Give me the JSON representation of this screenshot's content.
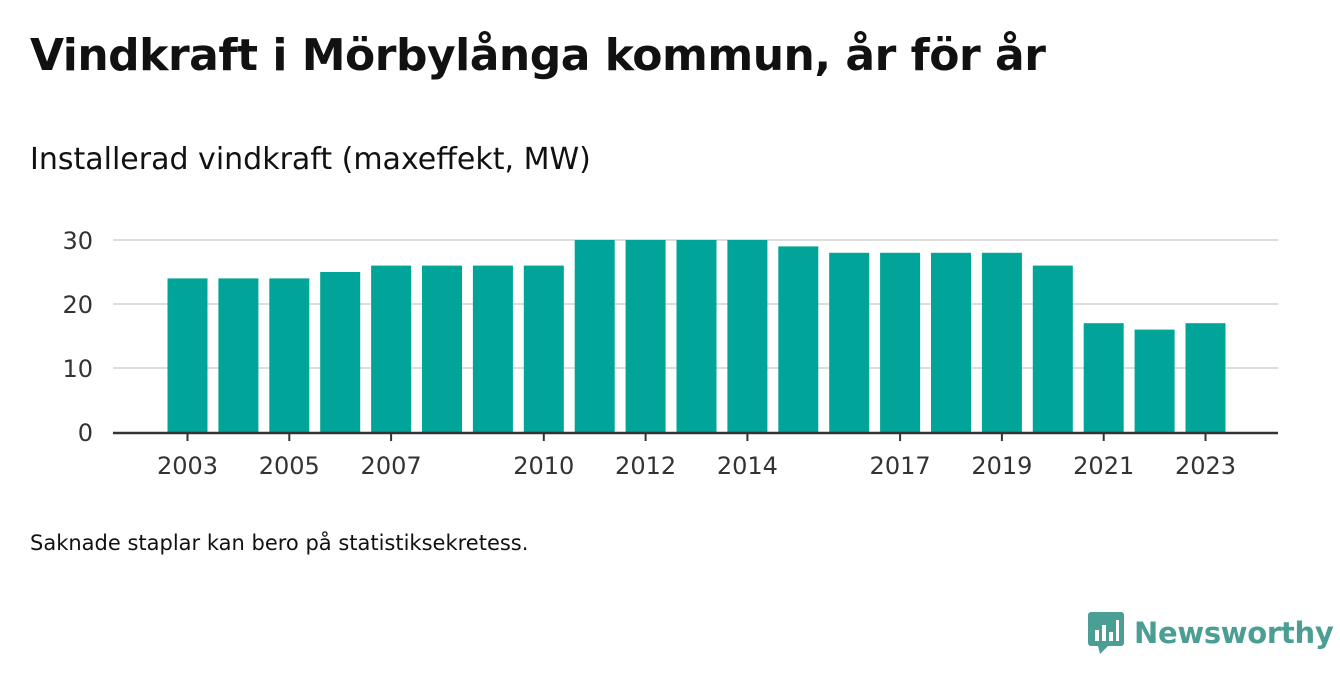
{
  "title": "Vindkraft i Mörbylånga kommun, år för år",
  "subtitle": "Installerad vindkraft (maxeffekt, MW)",
  "footnote": "Saknade staplar kan bero på statistiksekretess.",
  "brand": {
    "name": "Newsworthy",
    "icon": "newsworthy-logo-icon",
    "color": "#4a9e93"
  },
  "colors": {
    "bar": "#00a498",
    "grid": "#dddddd",
    "axis": "#333333"
  },
  "chart_data": {
    "type": "bar",
    "title": "Installerad vindkraft (maxeffekt, MW)",
    "xlabel": "",
    "ylabel": "",
    "categories": [
      "2003",
      "2004",
      "2005",
      "2006",
      "2007",
      "2008",
      "2009",
      "2010",
      "2011",
      "2012",
      "2013",
      "2014",
      "2015",
      "2016",
      "2017",
      "2018",
      "2019",
      "2020",
      "2021",
      "2022",
      "2023"
    ],
    "values": [
      24,
      24,
      24,
      25,
      26,
      26,
      26,
      26,
      30,
      30,
      30,
      30,
      29,
      28,
      28,
      28,
      28,
      26,
      17,
      16,
      17
    ],
    "x_tick_labels": [
      "2003",
      "2005",
      "2007",
      "2010",
      "2012",
      "2014",
      "2017",
      "2019",
      "2021",
      "2023"
    ],
    "y_ticks": [
      0,
      10,
      20,
      30
    ],
    "ylim": [
      0,
      30
    ],
    "grid": true,
    "legend": "none"
  }
}
